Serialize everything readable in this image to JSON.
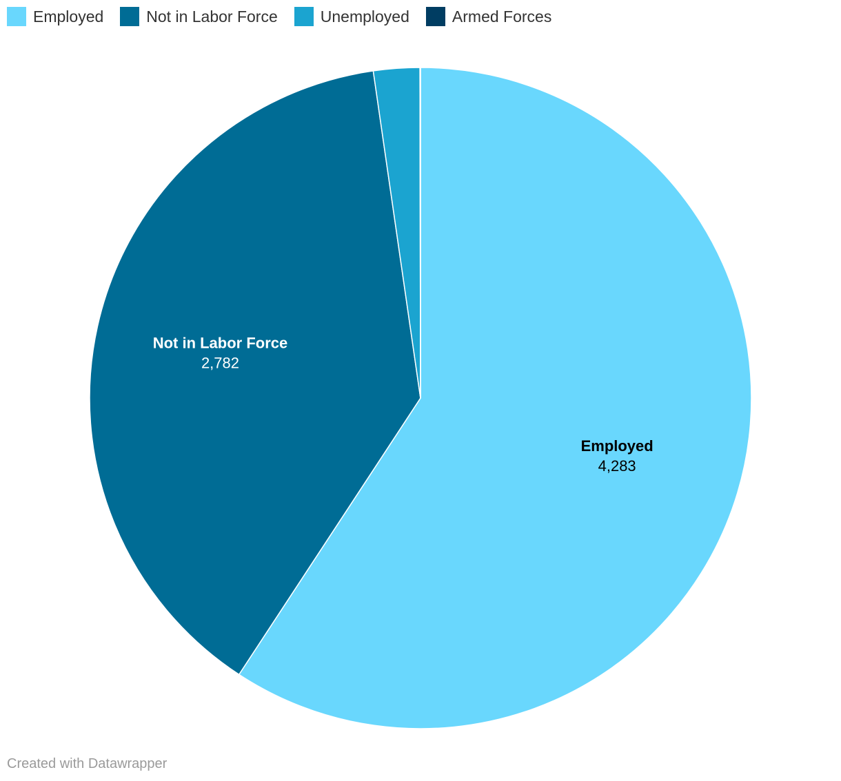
{
  "chart_data": {
    "type": "pie",
    "title": "",
    "categories": [
      "Employed",
      "Not in Labor Force",
      "Unemployed",
      "Armed Forces"
    ],
    "values": [
      4283,
      2782,
      163,
      2
    ],
    "colors": [
      "#69d7fd",
      "#006c95",
      "#1ba4d0",
      "#003d62"
    ],
    "value_labels": [
      "4,283",
      "2,782",
      "",
      ""
    ],
    "label_colors": [
      "#000000",
      "#ffffff",
      "#ffffff",
      "#ffffff"
    ],
    "legend_placement": "top-left",
    "start_angle_deg": 0,
    "direction": "clockwise"
  },
  "legend": [
    {
      "label": "Employed",
      "color": "#69d7fd"
    },
    {
      "label": "Not in Labor Force",
      "color": "#006c95"
    },
    {
      "label": "Unemployed",
      "color": "#1ba4d0"
    },
    {
      "label": "Armed Forces",
      "color": "#003d62"
    }
  ],
  "footer": {
    "credit": "Created with Datawrapper"
  }
}
